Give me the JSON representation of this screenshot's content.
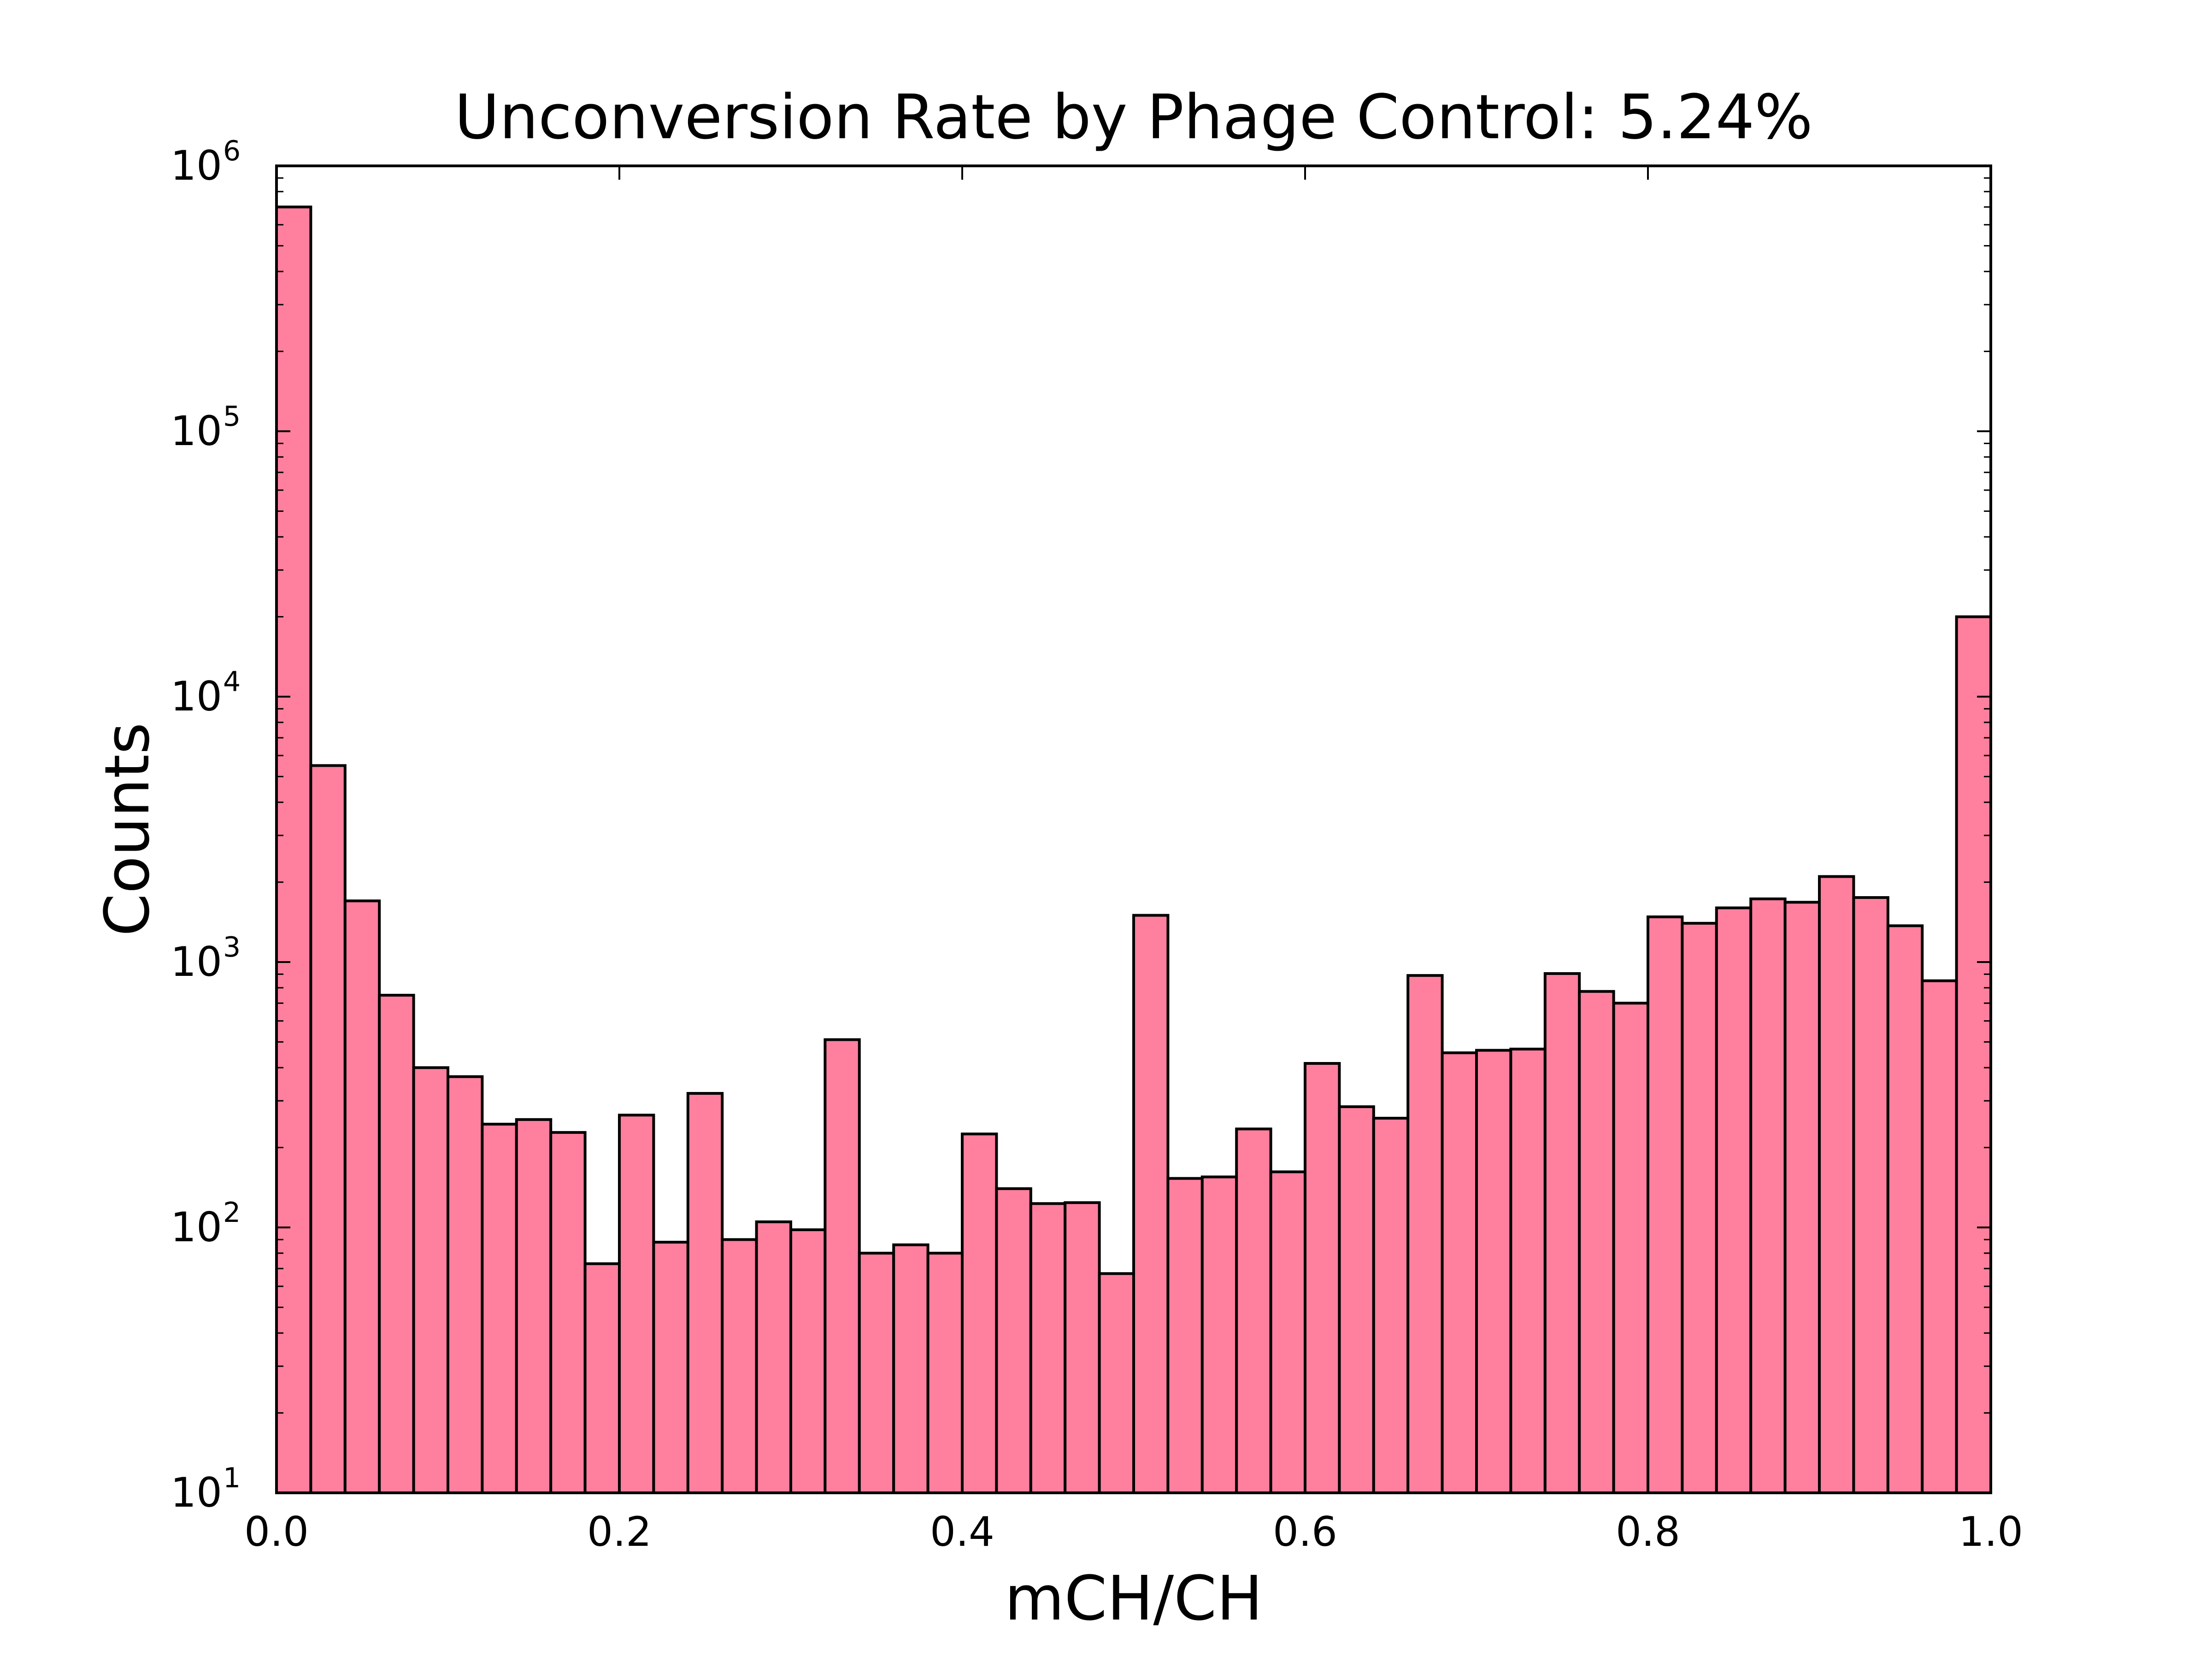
{
  "chart_data": {
    "type": "bar",
    "title": "Unconversion Rate by Phage Control: 5.24%",
    "xlabel": "mCH/CH",
    "ylabel": "Counts",
    "xlim": [
      0.0,
      1.0
    ],
    "ylim": [
      10,
      1000000
    ],
    "y_scale": "log",
    "grid": false,
    "bar_color": "#ff7f9e",
    "edge_color": "#000000",
    "x_tick_labels": [
      "0.0",
      "0.2",
      "0.4",
      "0.6",
      "0.8",
      "1.0"
    ],
    "y_tick_labels": [
      {
        "base": "10",
        "exp": "1"
      },
      {
        "base": "10",
        "exp": "2"
      },
      {
        "base": "10",
        "exp": "3"
      },
      {
        "base": "10",
        "exp": "4"
      },
      {
        "base": "10",
        "exp": "5"
      },
      {
        "base": "10",
        "exp": "6"
      }
    ],
    "bin_edges": [
      0.0,
      0.02,
      0.04,
      0.06,
      0.08,
      0.1,
      0.12,
      0.14,
      0.16,
      0.18,
      0.2,
      0.22,
      0.24,
      0.26,
      0.28,
      0.3,
      0.32,
      0.34,
      0.36,
      0.38,
      0.4,
      0.42,
      0.44,
      0.46,
      0.48,
      0.5,
      0.52,
      0.54,
      0.56,
      0.58,
      0.6,
      0.62,
      0.64,
      0.66,
      0.68,
      0.7,
      0.72,
      0.74,
      0.76,
      0.78,
      0.8,
      0.82,
      0.84,
      0.86,
      0.88,
      0.9,
      0.92,
      0.94,
      0.96,
      0.98,
      1.0
    ],
    "values": [
      700000,
      5500,
      1700,
      750,
      400,
      370,
      245,
      255,
      228,
      73,
      265,
      88,
      320,
      90,
      105,
      98,
      510,
      80,
      86,
      80,
      225,
      140,
      123,
      124,
      67,
      1500,
      153,
      155,
      235,
      162,
      415,
      285,
      258,
      890,
      455,
      465,
      470,
      905,
      775,
      700,
      1480,
      1400,
      1600,
      1730,
      1680,
      2100,
      1750,
      1370,
      850,
      20000
    ]
  }
}
